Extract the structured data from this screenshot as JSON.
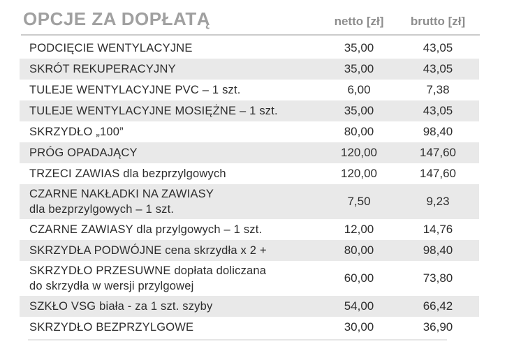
{
  "header": {
    "title": "OPCJE ZA DOPŁATĄ",
    "col_netto": "netto [zł]",
    "col_brutto": "brutto [zł]"
  },
  "rows": [
    {
      "name": "PODCIĘCIE WENTYLACYJNE",
      "netto": "35,00",
      "brutto": "43,05"
    },
    {
      "name": "SKRÓT REKUPERACYJNY",
      "netto": "35,00",
      "brutto": "43,05"
    },
    {
      "name": "TULEJE WENTYLACYJNE PVC – 1 szt.",
      "netto": "6,00",
      "brutto": "7,38"
    },
    {
      "name": "TULEJE WENTYLACYJNE MOSIĘŻNE – 1 szt.",
      "netto": "35,00",
      "brutto": "43,05"
    },
    {
      "name": "SKRZYDŁO „100”",
      "netto": "80,00",
      "brutto": "98,40"
    },
    {
      "name": "PRÓG OPADAJĄCY",
      "netto": "120,00",
      "brutto": "147,60"
    },
    {
      "name": "TRZECI ZAWIAS dla bezprzylgowych",
      "netto": "120,00",
      "brutto": "147,60"
    },
    {
      "name": "CZARNE NAKŁADKI NA ZAWIASY\ndla bezprzylgowych – 1 szt.",
      "netto": "7,50",
      "brutto": "9,23"
    },
    {
      "name": "CZARNE ZAWIASY dla przylgowych – 1 szt.",
      "netto": "12,00",
      "brutto": "14,76"
    },
    {
      "name": "SKRZYDŁA PODWÓJNE cena skrzydła x 2 +",
      "netto": "80,00",
      "brutto": "98,40"
    },
    {
      "name": "SKRZYDŁO PRZESUWNE dopłata doliczana\ndo skrzydła w wersji przylgowej",
      "netto": "60,00",
      "brutto": "73,80"
    },
    {
      "name": "SZKŁO VSG biała - za 1 szt. szyby",
      "netto": "54,00",
      "brutto": "66,42"
    },
    {
      "name": "SKRZYDŁO BEZPRZYLGOWE",
      "netto": "30,00",
      "brutto": "36,90"
    }
  ],
  "colors": {
    "title_gray": "#a0a0a0",
    "column_header_gray": "#8d8d8d",
    "row_stripe_gray": "#e9e9e9",
    "row_text": "#2d2d2d",
    "header_rule": "#cbcbcb"
  }
}
